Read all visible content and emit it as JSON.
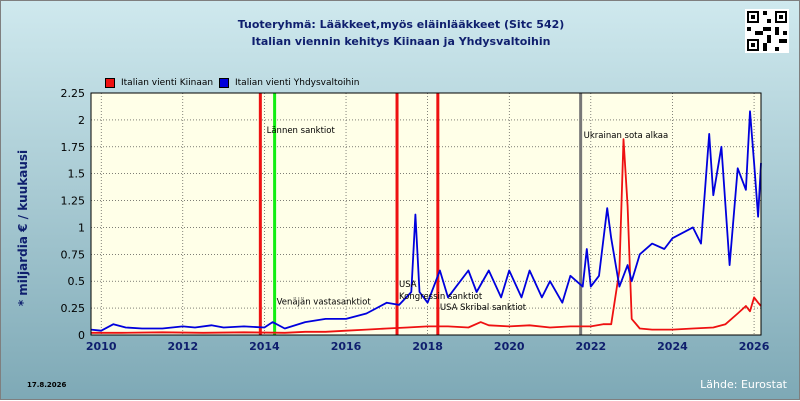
{
  "title_lines": [
    "Tuoteryhmä: Lääkkeet,myös eläinlääkkeet (Sitc 542)",
    "Italian viennin kehitys  Kiinaan ja Yhdysvaltoihin"
  ],
  "date_stamp": "17.8.2026",
  "source": "Lähde: Eurostat",
  "colors": {
    "plot_bg": "#ffffe8",
    "china": "#ee1111",
    "usa": "#0000dd",
    "event_red": "#ee1111",
    "event_green": "#11ee11",
    "event_gray": "#777777"
  },
  "chart_data": {
    "type": "line",
    "title": "Tuoteryhmä: Lääkkeet,myös eläinlääkkeet (Sitc 542) — Italian viennin kehitys  Kiinaan ja Yhdysvaltoihin",
    "ylabel": "* miljardia € / kuukausi",
    "xlabel": "",
    "x_range": [
      2009.75,
      2026.17
    ],
    "ylim": [
      0,
      2.25
    ],
    "x_ticks": [
      "2010",
      "2012",
      "2014",
      "2016",
      "2018",
      "2020",
      "2022",
      "2024",
      "2026"
    ],
    "y_ticks": [
      "0",
      "0.25",
      "0.5",
      "0.75",
      "1",
      "1.25",
      "1.5",
      "1.75",
      "2",
      "2.25"
    ],
    "grid": true,
    "legend_position": "top-left",
    "series": [
      {
        "name": "Italian vienti Kiinaan",
        "color": "#ee1111",
        "points": [
          [
            2009.75,
            0.02
          ],
          [
            2010.5,
            0.02
          ],
          [
            2011.5,
            0.025
          ],
          [
            2012.5,
            0.02
          ],
          [
            2013.5,
            0.025
          ],
          [
            2014.5,
            0.02
          ],
          [
            2015.0,
            0.03
          ],
          [
            2015.5,
            0.03
          ],
          [
            2016.0,
            0.04
          ],
          [
            2016.5,
            0.05
          ],
          [
            2017.0,
            0.06
          ],
          [
            2017.5,
            0.07
          ],
          [
            2018.0,
            0.08
          ],
          [
            2018.5,
            0.08
          ],
          [
            2019.0,
            0.07
          ],
          [
            2019.3,
            0.12
          ],
          [
            2019.5,
            0.09
          ],
          [
            2020.0,
            0.08
          ],
          [
            2020.5,
            0.09
          ],
          [
            2021.0,
            0.07
          ],
          [
            2021.5,
            0.08
          ],
          [
            2022.0,
            0.08
          ],
          [
            2022.3,
            0.1
          ],
          [
            2022.5,
            0.1
          ],
          [
            2022.7,
            0.6
          ],
          [
            2022.8,
            1.82
          ],
          [
            2022.9,
            1.2
          ],
          [
            2023.0,
            0.15
          ],
          [
            2023.2,
            0.06
          ],
          [
            2023.5,
            0.05
          ],
          [
            2024.0,
            0.05
          ],
          [
            2024.5,
            0.06
          ],
          [
            2025.0,
            0.07
          ],
          [
            2025.3,
            0.1
          ],
          [
            2025.6,
            0.2
          ],
          [
            2025.8,
            0.27
          ],
          [
            2025.9,
            0.22
          ],
          [
            2026.0,
            0.35
          ],
          [
            2026.1,
            0.3
          ],
          [
            2026.17,
            0.27
          ]
        ]
      },
      {
        "name": "Italian vienti Yhdysvaltoihin",
        "color": "#0000dd",
        "points": [
          [
            2009.75,
            0.05
          ],
          [
            2010.0,
            0.04
          ],
          [
            2010.3,
            0.1
          ],
          [
            2010.6,
            0.07
          ],
          [
            2011.0,
            0.06
          ],
          [
            2011.5,
            0.06
          ],
          [
            2012.0,
            0.08
          ],
          [
            2012.3,
            0.07
          ],
          [
            2012.7,
            0.09
          ],
          [
            2013.0,
            0.07
          ],
          [
            2013.5,
            0.08
          ],
          [
            2014.0,
            0.07
          ],
          [
            2014.2,
            0.12
          ],
          [
            2014.5,
            0.06
          ],
          [
            2015.0,
            0.12
          ],
          [
            2015.5,
            0.15
          ],
          [
            2016.0,
            0.15
          ],
          [
            2016.5,
            0.2
          ],
          [
            2017.0,
            0.3
          ],
          [
            2017.3,
            0.28
          ],
          [
            2017.6,
            0.4
          ],
          [
            2017.7,
            1.12
          ],
          [
            2017.8,
            0.4
          ],
          [
            2018.0,
            0.3
          ],
          [
            2018.3,
            0.6
          ],
          [
            2018.5,
            0.35
          ],
          [
            2018.7,
            0.45
          ],
          [
            2019.0,
            0.6
          ],
          [
            2019.2,
            0.4
          ],
          [
            2019.5,
            0.6
          ],
          [
            2019.8,
            0.35
          ],
          [
            2020.0,
            0.6
          ],
          [
            2020.3,
            0.35
          ],
          [
            2020.5,
            0.6
          ],
          [
            2020.8,
            0.35
          ],
          [
            2021.0,
            0.5
          ],
          [
            2021.3,
            0.3
          ],
          [
            2021.5,
            0.55
          ],
          [
            2021.8,
            0.45
          ],
          [
            2021.9,
            0.8
          ],
          [
            2022.0,
            0.45
          ],
          [
            2022.2,
            0.55
          ],
          [
            2022.4,
            1.18
          ],
          [
            2022.5,
            0.9
          ],
          [
            2022.7,
            0.45
          ],
          [
            2022.9,
            0.65
          ],
          [
            2023.0,
            0.5
          ],
          [
            2023.2,
            0.75
          ],
          [
            2023.5,
            0.85
          ],
          [
            2023.8,
            0.8
          ],
          [
            2024.0,
            0.9
          ],
          [
            2024.5,
            1.0
          ],
          [
            2024.7,
            0.85
          ],
          [
            2024.9,
            1.87
          ],
          [
            2025.0,
            1.3
          ],
          [
            2025.2,
            1.75
          ],
          [
            2025.4,
            0.65
          ],
          [
            2025.6,
            1.55
          ],
          [
            2025.8,
            1.35
          ],
          [
            2025.9,
            2.08
          ],
          [
            2026.0,
            1.6
          ],
          [
            2026.1,
            1.1
          ],
          [
            2026.17,
            1.6
          ]
        ]
      }
    ],
    "events": [
      {
        "x": 2013.9,
        "color": "#ee1111",
        "label": ""
      },
      {
        "x": 2014.25,
        "color": "#11ee11",
        "label": "Lännen sanktiot"
      },
      {
        "x": 2017.25,
        "color": "#ee1111",
        "label": "USA Kongressin sanktiot"
      },
      {
        "x": 2018.25,
        "color": "#ee1111",
        "label": "USA Skribal sanktiot"
      },
      {
        "x": 2021.75,
        "color": "#777777",
        "label": "Ukrainan sota alkaa"
      }
    ],
    "annotations": [
      {
        "text": "Venäjän vastasanktiot",
        "x": 2014.3,
        "y": 0.3
      }
    ]
  }
}
